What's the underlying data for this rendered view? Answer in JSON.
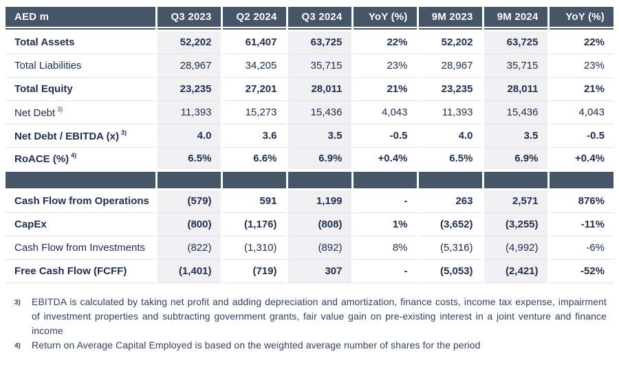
{
  "colors": {
    "header_bg": "#475569",
    "text_color": "#202e52",
    "highlight_bg": "#f0eff1",
    "divider": "#e2e3e6",
    "footnote_color": "#31405f"
  },
  "table": {
    "columns": [
      "AED m",
      "Q3 2023",
      "Q2 2024",
      "Q3 2024",
      "YoY (%)",
      "9M 2023",
      "9M 2024",
      "YoY (%)"
    ],
    "highlight_value_columns": [
      0,
      2,
      5
    ],
    "sections": [
      {
        "name": "balance-sheet-metrics",
        "rows": [
          {
            "label": "Total Assets",
            "sup": "",
            "bold": true,
            "values": [
              "52,202",
              "61,407",
              "63,725",
              "22%",
              "52,202",
              "63,725",
              "22%"
            ]
          },
          {
            "label": "Total Liabilities",
            "sup": "",
            "bold": false,
            "values": [
              "28,967",
              "34,205",
              "35,715",
              "23%",
              "28,967",
              "35,715",
              "23%"
            ]
          },
          {
            "label": "Total Equity",
            "sup": "",
            "bold": true,
            "values": [
              "23,235",
              "27,201",
              "28,011",
              "21%",
              "23,235",
              "28,011",
              "21%"
            ]
          },
          {
            "label": "Net Debt",
            "sup": "3)",
            "bold": false,
            "values": [
              "11,393",
              "15,273",
              "15,436",
              "4,043",
              "11,393",
              "15,436",
              "4,043"
            ]
          },
          {
            "label": "Net Debt / EBITDA (x)",
            "sup": "3)",
            "bold": true,
            "values": [
              "4.0",
              "3.6",
              "3.5",
              "-0.5",
              "4.0",
              "3.5",
              "-0.5"
            ]
          },
          {
            "label": "RoACE (%)",
            "sup": "4)",
            "bold": true,
            "values": [
              "6.5%",
              "6.6%",
              "6.9%",
              "+0.4%",
              "6.5%",
              "6.9%",
              "+0.4%"
            ]
          }
        ]
      },
      {
        "name": "cash-flow-metrics",
        "rows": [
          {
            "label": "Cash Flow from Operations",
            "sup": "",
            "bold": true,
            "values": [
              "(579)",
              "591",
              "1,199",
              "-",
              "263",
              "2,571",
              "876%"
            ]
          },
          {
            "label": "CapEx",
            "sup": "",
            "bold": true,
            "values": [
              "(800)",
              "(1,176)",
              "(808)",
              "1%",
              "(3,652)",
              "(3,255)",
              "-11%"
            ]
          },
          {
            "label": "Cash Flow from Investments",
            "sup": "",
            "bold": false,
            "values": [
              "(822)",
              "(1,310)",
              "(892)",
              "8%",
              "(5,316)",
              "(4,992)",
              "-6%"
            ]
          },
          {
            "label": "Free Cash Flow (FCFF)",
            "sup": "",
            "bold": true,
            "values": [
              "(1,401)",
              "(719)",
              "307",
              "-",
              "(5,053)",
              "(2,421)",
              "-52%"
            ]
          }
        ]
      }
    ]
  },
  "footnotes": [
    {
      "marker": "3)",
      "text": "EBITDA is calculated by taking net profit and adding depreciation and amortization, finance costs, income tax expense, impairment of investment properties and subtracting government grants, fair value gain on pre-existing interest in a joint venture and finance income"
    },
    {
      "marker": "4)",
      "text": "Return on Average Capital Employed is based on the weighted average number of shares for the period"
    }
  ]
}
